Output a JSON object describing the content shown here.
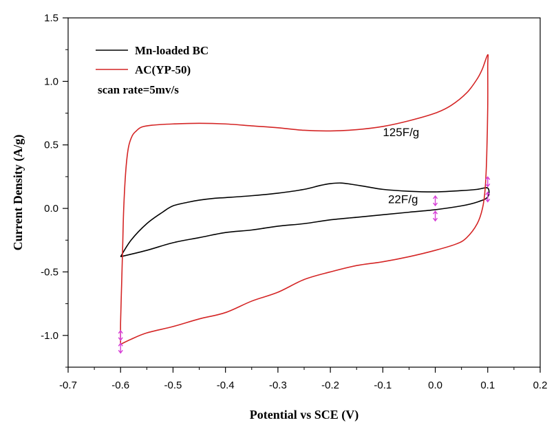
{
  "chart_data": {
    "type": "line",
    "title": "",
    "xlabel": "Potential vs SCE (V)",
    "ylabel": "Current Density (A/g)",
    "xlim": [
      -0.7,
      0.2
    ],
    "ylim": [
      -1.25,
      1.5
    ],
    "xticks": [
      -0.7,
      -0.6,
      -0.5,
      -0.4,
      -0.3,
      -0.2,
      -0.1,
      0.0,
      0.1,
      0.2
    ],
    "xtick_labels": [
      "-0.7",
      "-0.6",
      "-0.5",
      "-0.4",
      "-0.3",
      "-0.2",
      "-0.1",
      "0.0",
      "0.1",
      "0.2"
    ],
    "yticks": [
      -1.0,
      -0.5,
      0.0,
      0.5,
      1.0,
      1.5
    ],
    "ytick_labels": [
      "-1.0",
      "-0.5",
      "0.0",
      "0.5",
      "1.0",
      "1.5"
    ],
    "grid": false,
    "legend_position": "top-left",
    "annotation_text": "scan rate=5mv/s",
    "series": [
      {
        "name": "Mn-loaded BC",
        "color": "#000000",
        "points": [
          [
            -0.6,
            -0.38
          ],
          [
            -0.58,
            -0.25
          ],
          [
            -0.55,
            -0.12
          ],
          [
            -0.52,
            -0.03
          ],
          [
            -0.5,
            0.02
          ],
          [
            -0.47,
            0.05
          ],
          [
            -0.45,
            0.065
          ],
          [
            -0.42,
            0.08
          ],
          [
            -0.4,
            0.085
          ],
          [
            -0.35,
            0.1
          ],
          [
            -0.3,
            0.12
          ],
          [
            -0.25,
            0.15
          ],
          [
            -0.22,
            0.18
          ],
          [
            -0.2,
            0.195
          ],
          [
            -0.18,
            0.2
          ],
          [
            -0.16,
            0.19
          ],
          [
            -0.13,
            0.17
          ],
          [
            -0.1,
            0.15
          ],
          [
            -0.05,
            0.135
          ],
          [
            0.0,
            0.13
          ],
          [
            0.05,
            0.14
          ],
          [
            0.08,
            0.15
          ],
          [
            0.1,
            0.16
          ],
          [
            0.1,
            0.09
          ],
          [
            0.08,
            0.05
          ],
          [
            0.05,
            0.02
          ],
          [
            0.0,
            -0.01
          ],
          [
            -0.05,
            -0.03
          ],
          [
            -0.1,
            -0.05
          ],
          [
            -0.15,
            -0.07
          ],
          [
            -0.2,
            -0.09
          ],
          [
            -0.25,
            -0.12
          ],
          [
            -0.3,
            -0.14
          ],
          [
            -0.35,
            -0.17
          ],
          [
            -0.4,
            -0.19
          ],
          [
            -0.45,
            -0.23
          ],
          [
            -0.5,
            -0.27
          ],
          [
            -0.55,
            -0.33
          ],
          [
            -0.6,
            -0.38
          ]
        ]
      },
      {
        "name": "AC(YP-50)",
        "color": "#d42424",
        "points": [
          [
            -0.6,
            -1.07
          ],
          [
            -0.6,
            -0.9
          ],
          [
            -0.598,
            -0.6
          ],
          [
            -0.596,
            -0.3
          ],
          [
            -0.594,
            0.0
          ],
          [
            -0.59,
            0.3
          ],
          [
            -0.585,
            0.48
          ],
          [
            -0.578,
            0.57
          ],
          [
            -0.57,
            0.61
          ],
          [
            -0.56,
            0.64
          ],
          [
            -0.54,
            0.655
          ],
          [
            -0.5,
            0.665
          ],
          [
            -0.45,
            0.67
          ],
          [
            -0.4,
            0.665
          ],
          [
            -0.35,
            0.65
          ],
          [
            -0.3,
            0.635
          ],
          [
            -0.25,
            0.615
          ],
          [
            -0.2,
            0.61
          ],
          [
            -0.15,
            0.62
          ],
          [
            -0.1,
            0.645
          ],
          [
            -0.05,
            0.69
          ],
          [
            0.0,
            0.75
          ],
          [
            0.03,
            0.81
          ],
          [
            0.06,
            0.91
          ],
          [
            0.08,
            1.02
          ],
          [
            0.09,
            1.1
          ],
          [
            0.1,
            1.21
          ],
          [
            0.1,
            1.12
          ],
          [
            0.1,
            0.8
          ],
          [
            0.098,
            0.4
          ],
          [
            0.095,
            0.15
          ],
          [
            0.09,
            0.0
          ],
          [
            0.08,
            -0.12
          ],
          [
            0.06,
            -0.23
          ],
          [
            0.04,
            -0.28
          ],
          [
            0.0,
            -0.33
          ],
          [
            -0.05,
            -0.38
          ],
          [
            -0.1,
            -0.42
          ],
          [
            -0.15,
            -0.45
          ],
          [
            -0.2,
            -0.5
          ],
          [
            -0.25,
            -0.56
          ],
          [
            -0.3,
            -0.66
          ],
          [
            -0.35,
            -0.73
          ],
          [
            -0.4,
            -0.82
          ],
          [
            -0.45,
            -0.87
          ],
          [
            -0.5,
            -0.93
          ],
          [
            -0.55,
            -0.98
          ],
          [
            -0.58,
            -1.03
          ],
          [
            -0.6,
            -1.07
          ]
        ]
      }
    ],
    "labels": [
      {
        "text": "125F/g",
        "x": -0.1,
        "y": 0.57
      },
      {
        "text": "22F/g",
        "x": -0.09,
        "y": 0.04
      }
    ],
    "marker_color": "#d63fd6",
    "markers": [
      {
        "x": -0.6,
        "y": -1.0
      },
      {
        "x": -0.6,
        "y": -1.1
      },
      {
        "x": 0.0,
        "y": 0.06
      },
      {
        "x": 0.0,
        "y": -0.06
      },
      {
        "x": 0.1,
        "y": 0.21
      },
      {
        "x": 0.1,
        "y": 0.09
      }
    ]
  }
}
